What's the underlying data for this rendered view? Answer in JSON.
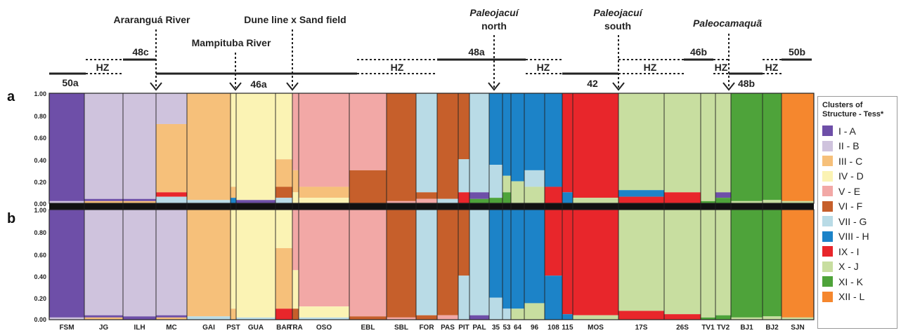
{
  "panel_letters": [
    "a",
    "b"
  ],
  "y_ticks": [
    "1.00",
    "0.80",
    "0.60",
    "0.40",
    "0.20",
    "0.00"
  ],
  "regions": [
    {
      "label": "Araranguá River",
      "italic": false
    },
    {
      "label": "Mampituba River",
      "italic": false
    },
    {
      "label": "Dune line x Sand field",
      "italic": false
    },
    {
      "label": "Paleojacuí",
      "label2": "north",
      "italic": true
    },
    {
      "label": "Paleojacuí",
      "label2": "south",
      "italic": true
    },
    {
      "label": "Paleocamaquã",
      "italic": true
    }
  ],
  "segments": [
    "50a",
    "HZ",
    "48c",
    "46a",
    "HZ",
    "48a",
    "HZ",
    "42",
    "HZ",
    "46b",
    "HZ",
    "48b",
    "HZ",
    "50b"
  ],
  "legend": {
    "title_line1": "Clusters of",
    "title_line2": "Structure - Tess*",
    "items": [
      {
        "label": "I - A",
        "color": "#6e4fa8"
      },
      {
        "label": "II - B",
        "color": "#cfc3dd"
      },
      {
        "label": "III - C",
        "color": "#f6c07a"
      },
      {
        "label": "IV - D",
        "color": "#fbf3b4"
      },
      {
        "label": "V - E",
        "color": "#f2a8a6"
      },
      {
        "label": "VI - F",
        "color": "#c65f2b"
      },
      {
        "label": "VII - G",
        "color": "#b9dbe6"
      },
      {
        "label": "VIII - H",
        "color": "#1c83c8"
      },
      {
        "label": "IX - I",
        "color": "#e8262b"
      },
      {
        "label": "X - J",
        "color": "#c8dea0"
      },
      {
        "label": "XI - K",
        "color": "#4ea33a"
      },
      {
        "label": "XII - L",
        "color": "#f5872e"
      }
    ]
  },
  "chart_data": {
    "type": "bar",
    "stacked": true,
    "ylim": [
      0,
      1
    ],
    "populations": [
      {
        "label": "FSM",
        "a": [
          {
            "c": 0,
            "v": 0.98
          },
          {
            "c": 1,
            "v": 0.02
          }
        ],
        "b": [
          {
            "c": 0,
            "v": 0.98
          },
          {
            "c": 1,
            "v": 0.02
          }
        ]
      },
      {
        "label": "JG",
        "a": [
          {
            "c": 1,
            "v": 0.96
          },
          {
            "c": 0,
            "v": 0.02
          },
          {
            "c": 2,
            "v": 0.02
          }
        ],
        "b": [
          {
            "c": 1,
            "v": 0.96
          },
          {
            "c": 0,
            "v": 0.02
          },
          {
            "c": 2,
            "v": 0.02
          }
        ]
      },
      {
        "label": "ILH",
        "a": [
          {
            "c": 1,
            "v": 0.96
          },
          {
            "c": 0,
            "v": 0.02
          },
          {
            "c": 2,
            "v": 0.02
          }
        ],
        "b": [
          {
            "c": 1,
            "v": 0.97
          },
          {
            "c": 0,
            "v": 0.03
          }
        ]
      },
      {
        "label": "MC",
        "a": [
          {
            "c": 1,
            "v": 0.28
          },
          {
            "c": 2,
            "v": 0.62
          },
          {
            "c": 8,
            "v": 0.04
          },
          {
            "c": 6,
            "v": 0.06
          }
        ],
        "b": [
          {
            "c": 1,
            "v": 0.96
          },
          {
            "c": 0,
            "v": 0.02
          },
          {
            "c": 2,
            "v": 0.02
          }
        ]
      },
      {
        "label": "GAI",
        "a": [
          {
            "c": 2,
            "v": 0.97
          },
          {
            "c": 6,
            "v": 0.03
          }
        ],
        "b": [
          {
            "c": 2,
            "v": 0.97
          },
          {
            "c": 6,
            "v": 0.03
          }
        ]
      },
      {
        "label": "PST",
        "a": [
          {
            "c": 3,
            "v": 0.85
          },
          {
            "c": 2,
            "v": 0.1
          },
          {
            "c": 7,
            "v": 0.05
          }
        ],
        "b": [
          {
            "c": 3,
            "v": 0.9
          },
          {
            "c": 2,
            "v": 0.1
          }
        ]
      },
      {
        "label": "GUA",
        "a": [
          {
            "c": 3,
            "v": 0.97
          },
          {
            "c": 0,
            "v": 0.03
          }
        ],
        "b": [
          {
            "c": 3,
            "v": 0.98
          },
          {
            "c": 6,
            "v": 0.02
          }
        ]
      },
      {
        "label": "BAR",
        "a": [
          {
            "c": 3,
            "v": 0.6
          },
          {
            "c": 2,
            "v": 0.25
          },
          {
            "c": 5,
            "v": 0.1
          },
          {
            "c": 6,
            "v": 0.05
          }
        ],
        "b": [
          {
            "c": 3,
            "v": 0.35
          },
          {
            "c": 2,
            "v": 0.55
          },
          {
            "c": 8,
            "v": 0.1
          }
        ]
      },
      {
        "label": "TRA",
        "a": [
          {
            "c": 4,
            "v": 0.7
          },
          {
            "c": 2,
            "v": 0.2
          },
          {
            "c": 3,
            "v": 0.1
          }
        ],
        "b": [
          {
            "c": 4,
            "v": 0.55
          },
          {
            "c": 3,
            "v": 0.35
          },
          {
            "c": 5,
            "v": 0.1
          }
        ]
      },
      {
        "label": "OSO",
        "a": [
          {
            "c": 4,
            "v": 0.85
          },
          {
            "c": 2,
            "v": 0.1
          },
          {
            "c": 3,
            "v": 0.05
          }
        ],
        "b": [
          {
            "c": 4,
            "v": 0.88
          },
          {
            "c": 3,
            "v": 0.1
          },
          {
            "c": 6,
            "v": 0.02
          }
        ]
      },
      {
        "label": "EBL",
        "a": [
          {
            "c": 4,
            "v": 0.7
          },
          {
            "c": 5,
            "v": 0.3
          }
        ],
        "b": [
          {
            "c": 4,
            "v": 0.97
          },
          {
            "c": 5,
            "v": 0.03
          }
        ]
      },
      {
        "label": "SBL",
        "a": [
          {
            "c": 5,
            "v": 0.98
          },
          {
            "c": 4,
            "v": 0.02
          }
        ],
        "b": [
          {
            "c": 5,
            "v": 0.98
          },
          {
            "c": 4,
            "v": 0.02
          }
        ]
      },
      {
        "label": "FOR",
        "a": [
          {
            "c": 6,
            "v": 0.9
          },
          {
            "c": 5,
            "v": 0.06
          },
          {
            "c": 4,
            "v": 0.04
          }
        ],
        "b": [
          {
            "c": 6,
            "v": 0.96
          },
          {
            "c": 5,
            "v": 0.04
          }
        ]
      },
      {
        "label": "PAS",
        "a": [
          {
            "c": 5,
            "v": 0.96
          },
          {
            "c": 6,
            "v": 0.04
          }
        ],
        "b": [
          {
            "c": 5,
            "v": 0.96
          },
          {
            "c": 4,
            "v": 0.04
          }
        ]
      },
      {
        "label": "PIT",
        "a": [
          {
            "c": 5,
            "v": 0.6
          },
          {
            "c": 6,
            "v": 0.3
          },
          {
            "c": 8,
            "v": 0.1
          }
        ],
        "b": [
          {
            "c": 5,
            "v": 0.6
          },
          {
            "c": 6,
            "v": 0.4
          }
        ]
      },
      {
        "label": "PAL",
        "a": [
          {
            "c": 6,
            "v": 0.9
          },
          {
            "c": 0,
            "v": 0.06
          },
          {
            "c": 10,
            "v": 0.04
          }
        ],
        "b": [
          {
            "c": 6,
            "v": 0.96
          },
          {
            "c": 0,
            "v": 0.04
          }
        ]
      },
      {
        "label": "35",
        "a": [
          {
            "c": 7,
            "v": 0.65
          },
          {
            "c": 6,
            "v": 0.3
          },
          {
            "c": 10,
            "v": 0.05
          }
        ],
        "b": [
          {
            "c": 7,
            "v": 0.8
          },
          {
            "c": 6,
            "v": 0.2
          }
        ]
      },
      {
        "label": "53",
        "a": [
          {
            "c": 7,
            "v": 0.75
          },
          {
            "c": 9,
            "v": 0.15
          },
          {
            "c": 10,
            "v": 0.1
          }
        ],
        "b": [
          {
            "c": 7,
            "v": 0.9
          },
          {
            "c": 6,
            "v": 0.1
          }
        ]
      },
      {
        "label": "64",
        "a": [
          {
            "c": 7,
            "v": 0.8
          },
          {
            "c": 9,
            "v": 0.2
          }
        ],
        "b": [
          {
            "c": 7,
            "v": 0.9
          },
          {
            "c": 9,
            "v": 0.1
          }
        ]
      },
      {
        "label": "96",
        "a": [
          {
            "c": 7,
            "v": 0.7
          },
          {
            "c": 6,
            "v": 0.15
          },
          {
            "c": 9,
            "v": 0.15
          }
        ],
        "b": [
          {
            "c": 7,
            "v": 0.85
          },
          {
            "c": 9,
            "v": 0.15
          }
        ]
      },
      {
        "label": "108",
        "a": [
          {
            "c": 7,
            "v": 0.85
          },
          {
            "c": 8,
            "v": 0.15
          }
        ],
        "b": [
          {
            "c": 8,
            "v": 0.6
          },
          {
            "c": 7,
            "v": 0.4
          }
        ]
      },
      {
        "label": "115",
        "a": [
          {
            "c": 8,
            "v": 0.9
          },
          {
            "c": 7,
            "v": 0.1
          }
        ],
        "b": [
          {
            "c": 8,
            "v": 0.95
          },
          {
            "c": 7,
            "v": 0.05
          }
        ]
      },
      {
        "label": "MOS",
        "a": [
          {
            "c": 8,
            "v": 0.95
          },
          {
            "c": 9,
            "v": 0.05
          }
        ],
        "b": [
          {
            "c": 8,
            "v": 0.96
          },
          {
            "c": 9,
            "v": 0.04
          }
        ]
      },
      {
        "label": "17S",
        "a": [
          {
            "c": 9,
            "v": 0.88
          },
          {
            "c": 7,
            "v": 0.06
          },
          {
            "c": 8,
            "v": 0.06
          }
        ],
        "b": [
          {
            "c": 9,
            "v": 0.92
          },
          {
            "c": 8,
            "v": 0.08
          }
        ]
      },
      {
        "label": "26S",
        "a": [
          {
            "c": 9,
            "v": 0.9
          },
          {
            "c": 8,
            "v": 0.1
          }
        ],
        "b": [
          {
            "c": 9,
            "v": 0.95
          },
          {
            "c": 8,
            "v": 0.05
          }
        ]
      },
      {
        "label": "TV1",
        "a": [
          {
            "c": 9,
            "v": 0.98
          },
          {
            "c": 10,
            "v": 0.02
          }
        ],
        "b": [
          {
            "c": 9,
            "v": 0.98
          },
          {
            "c": 10,
            "v": 0.02
          }
        ]
      },
      {
        "label": "TV2",
        "a": [
          {
            "c": 9,
            "v": 0.9
          },
          {
            "c": 0,
            "v": 0.05
          },
          {
            "c": 10,
            "v": 0.05
          }
        ],
        "b": [
          {
            "c": 9,
            "v": 0.96
          },
          {
            "c": 10,
            "v": 0.04
          }
        ]
      },
      {
        "label": "BJ1",
        "a": [
          {
            "c": 10,
            "v": 0.98
          },
          {
            "c": 9,
            "v": 0.02
          }
        ],
        "b": [
          {
            "c": 10,
            "v": 0.98
          },
          {
            "c": 9,
            "v": 0.02
          }
        ]
      },
      {
        "label": "BJ2",
        "a": [
          {
            "c": 10,
            "v": 0.97
          },
          {
            "c": 9,
            "v": 0.03
          }
        ],
        "b": [
          {
            "c": 10,
            "v": 0.97
          },
          {
            "c": 9,
            "v": 0.03
          }
        ]
      },
      {
        "label": "SJN",
        "a": [
          {
            "c": 11,
            "v": 0.98
          },
          {
            "c": 9,
            "v": 0.02
          }
        ],
        "b": [
          {
            "c": 11,
            "v": 0.98
          },
          {
            "c": 9,
            "v": 0.02
          }
        ]
      }
    ]
  }
}
